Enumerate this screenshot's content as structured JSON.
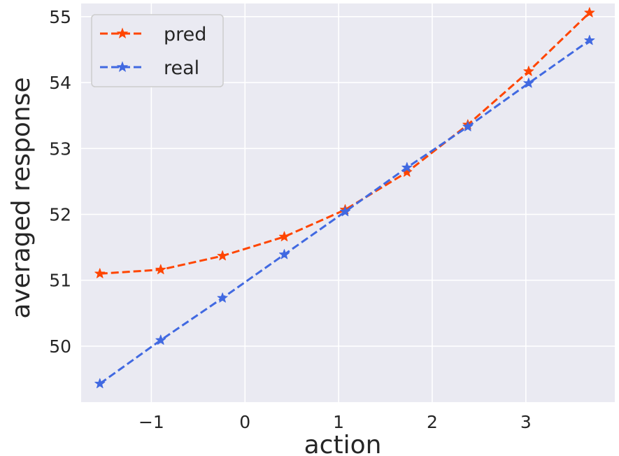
{
  "chart_data": {
    "type": "line",
    "xlabel": "action",
    "ylabel": "averaged response",
    "xlim": [
      -1.75,
      3.95
    ],
    "ylim": [
      49.15,
      55.2
    ],
    "xticks": [
      -1,
      0,
      1,
      2,
      3
    ],
    "xtick_labels": [
      "−1",
      "0",
      "1",
      "2",
      "3"
    ],
    "yticks": [
      50,
      51,
      52,
      53,
      54,
      55
    ],
    "ytick_labels": [
      "50",
      "51",
      "52",
      "53",
      "54",
      "55"
    ],
    "grid": true,
    "legend_position": "top-left",
    "series": [
      {
        "name": "pred",
        "color": "#ff4500",
        "marker": "star",
        "linestyle": "dashed",
        "x": [
          -1.55,
          -0.9,
          -0.24,
          0.42,
          1.07,
          1.73,
          2.38,
          3.03,
          3.68
        ],
        "y": [
          51.1,
          51.16,
          51.37,
          51.66,
          52.07,
          52.64,
          53.36,
          54.17,
          55.06
        ]
      },
      {
        "name": "real",
        "color": "#4169e1",
        "marker": "star",
        "linestyle": "dashed",
        "x": [
          -1.55,
          -0.9,
          -0.24,
          0.42,
          1.07,
          1.73,
          2.38,
          3.03,
          3.68
        ],
        "y": [
          49.43,
          50.09,
          50.73,
          51.39,
          52.04,
          52.71,
          53.33,
          53.99,
          54.64
        ]
      }
    ]
  }
}
